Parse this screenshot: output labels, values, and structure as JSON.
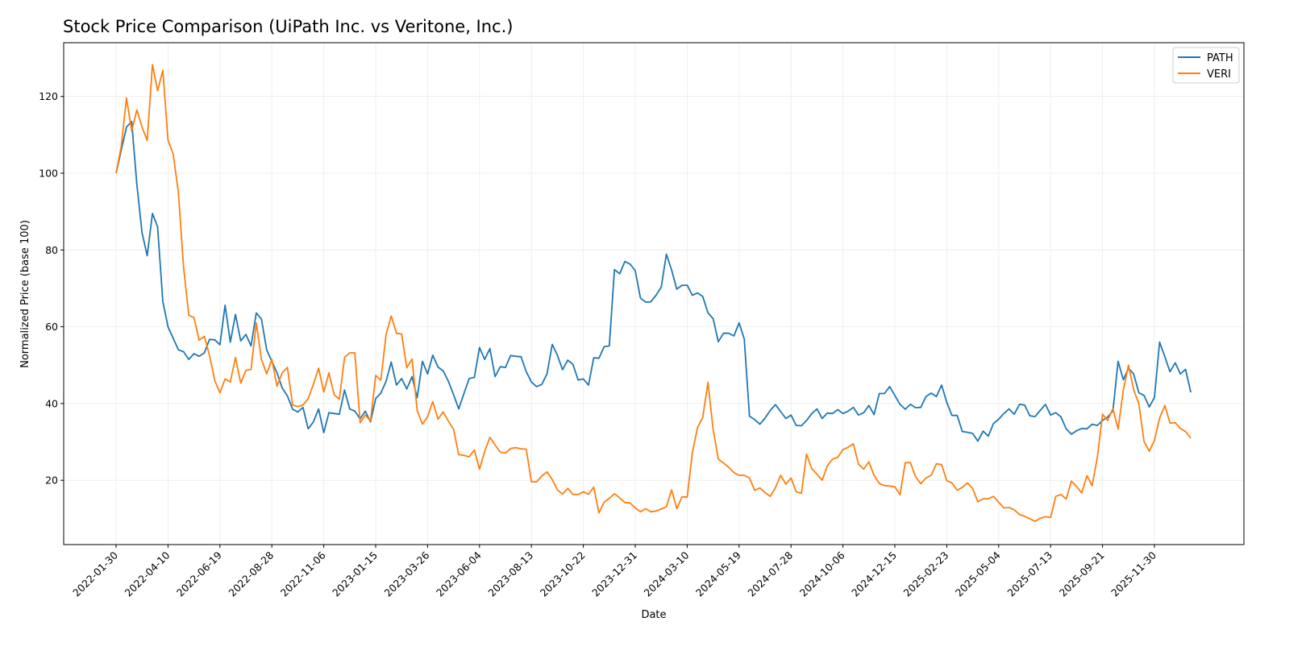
{
  "chart_data": {
    "type": "line",
    "title": "Stock Price Comparison (UiPath Inc. vs Veritone, Inc.)",
    "xlabel": "Date",
    "ylabel": "Normalized Price (base 100)",
    "x_frequency": "weekly",
    "x_ticks": [
      "2022-01-30",
      "2022-04-10",
      "2022-06-19",
      "2022-08-28",
      "2022-11-06",
      "2023-01-15",
      "2023-03-26",
      "2023-06-04",
      "2023-08-13",
      "2023-10-22",
      "2023-12-31",
      "2024-03-10",
      "2024-05-19",
      "2024-07-28",
      "2024-10-06",
      "2024-12-15",
      "2025-02-23",
      "2025-05-04",
      "2025-07-13",
      "2025-09-21",
      "2025-11-30"
    ],
    "y_ticks": [
      20,
      40,
      60,
      80,
      100,
      120
    ],
    "ylim": [
      3,
      134
    ],
    "grid": true,
    "legend": "top-right",
    "series": [
      {
        "name": "PATH",
        "color": "#1f77b4",
        "values": [
          100,
          106,
          112,
          113.5,
          97,
          84.5,
          78.5,
          89.5,
          86,
          66.5,
          60,
          57,
          54,
          53.5,
          51.5,
          53,
          52.3,
          53.2,
          56.7,
          56.6,
          55.3,
          65.6,
          56,
          63.2,
          56.3,
          58,
          55,
          63.6,
          62,
          54,
          51,
          48,
          44,
          42,
          38.5,
          37.8,
          39,
          33.4,
          35.2,
          38.6,
          32.4,
          37.6,
          37.4,
          37.2,
          43.5,
          38.6,
          38,
          36,
          38,
          35.2,
          41.3,
          42.7,
          45.8,
          50.8,
          44.8,
          46.5,
          43.8,
          47,
          41.5,
          51,
          47.7,
          52.6,
          49.5,
          48.5,
          45.8,
          42.3,
          38.6,
          42.6,
          46.5,
          46.8,
          54.6,
          51.5,
          54.3,
          47,
          49.6,
          49.4,
          52.5,
          52.3,
          52.2,
          48.3,
          45.6,
          44.4,
          45,
          47.7,
          55.4,
          52.6,
          48.8,
          51.3,
          50.2,
          46.1,
          46.4,
          44.8,
          51.9,
          51.8,
          54.8,
          55,
          74.9,
          73.8,
          77,
          76.3,
          74.6,
          67.5,
          66.4,
          66.5,
          68.2,
          70.3,
          78.9,
          74.8,
          69.8,
          70.8,
          70.8,
          68.2,
          68.8,
          67.9,
          63.6,
          62.1,
          56.1,
          58.3,
          58.3,
          57.6,
          61,
          56.8,
          36.7,
          35.8,
          34.6,
          36.2,
          38.2,
          39.7,
          37.9,
          36.1,
          37,
          34.3,
          34.2,
          35.6,
          37.4,
          38.6,
          36.1,
          37.5,
          37.4,
          38.4,
          37.4,
          38,
          39,
          37,
          37.6,
          39.5,
          37.1,
          42.6,
          42.6,
          44.4,
          42.1,
          39.8,
          38.5,
          39.8,
          38.9,
          39,
          41.8,
          42.7,
          41.8,
          44.8,
          40.3,
          36.9,
          36.9,
          32.7,
          32.5,
          32.2,
          30.2,
          32.8,
          31.5,
          34.8,
          35.9,
          37.4,
          38.6,
          37.2,
          39.8,
          39.6,
          36.8,
          36.6,
          38.2,
          39.8,
          37,
          37.6,
          36.5,
          33.4,
          32,
          32.9,
          33.5,
          33.4,
          34.6,
          34.3,
          35.6,
          36.5,
          38.1,
          51,
          46.2,
          49.2,
          47.7,
          42.8,
          42.1,
          39.1,
          41.6,
          56,
          52.2,
          48.3,
          50.6,
          47.7,
          48.9,
          42.9
        ]
      },
      {
        "name": "VERI",
        "color": "#ff7f0e",
        "values": [
          100,
          107,
          119.6,
          111,
          116.5,
          112,
          108.5,
          128.3,
          121.5,
          126.8,
          108.6,
          105,
          95,
          75.5,
          63,
          62.4,
          56.5,
          57.5,
          52.5,
          46,
          42.8,
          46.4,
          45.6,
          52,
          45.3,
          48.6,
          48.9,
          61,
          51.5,
          47.7,
          51.5,
          44.5,
          48,
          49.4,
          39.6,
          39.2,
          39.6,
          41.3,
          45,
          49.2,
          43,
          48,
          42.3,
          41.1,
          52,
          53.2,
          53.2,
          35,
          37,
          35.4,
          47.3,
          46.1,
          58,
          62.8,
          58.3,
          58.1,
          49.3,
          51.6,
          38.2,
          34.6,
          36.6,
          40.5,
          35.9,
          37.8,
          35.4,
          33.3,
          26.7,
          26.5,
          26.1,
          27.9,
          22.9,
          27.5,
          31.2,
          29.2,
          27.3,
          27.1,
          28.3,
          28.5,
          28.2,
          28.1,
          19.6,
          19.6,
          21.1,
          22.2,
          20.2,
          17.5,
          16.4,
          17.9,
          16.3,
          16.3,
          17,
          16.4,
          18.2,
          11.5,
          14.3,
          15.3,
          16.5,
          15.4,
          14.2,
          14.1,
          12.8,
          11.8,
          12.6,
          11.8,
          12,
          12.5,
          13.1,
          17.5,
          12.6,
          15.7,
          15.6,
          27.2,
          33.8,
          36.4,
          45.5,
          33.2,
          25.5,
          24.5,
          23.4,
          22,
          21.3,
          21.3,
          20.6,
          17.4,
          18,
          16.8,
          15.8,
          18.1,
          21.3,
          19,
          20.6,
          17,
          16.6,
          26.8,
          23,
          21.6,
          20,
          23.8,
          25.5,
          26,
          28,
          28.6,
          29.5,
          24.2,
          22.9,
          24.8,
          21.3,
          19.2,
          18.6,
          18.5,
          18.3,
          16.2,
          24.6,
          24.6,
          20.9,
          19.1,
          20.6,
          21.3,
          24.3,
          24.1,
          19.9,
          19.3,
          17.4,
          18.2,
          19.3,
          17.8,
          14.4,
          15.2,
          15.2,
          15.8,
          14.3,
          12.8,
          12.9,
          12.3,
          11.1,
          10.6,
          10,
          9.3,
          10.1,
          10.5,
          10.3,
          15.8,
          16.3,
          15.1,
          19.8,
          18.4,
          16.7,
          21.2,
          18.6,
          26,
          37.2,
          35.6,
          38.7,
          33.3,
          43.5,
          50,
          43.6,
          39.9,
          30.1,
          27.6,
          30.4,
          36.2,
          39.5,
          34.9,
          35,
          33.5,
          32.7,
          31
        ]
      }
    ]
  }
}
